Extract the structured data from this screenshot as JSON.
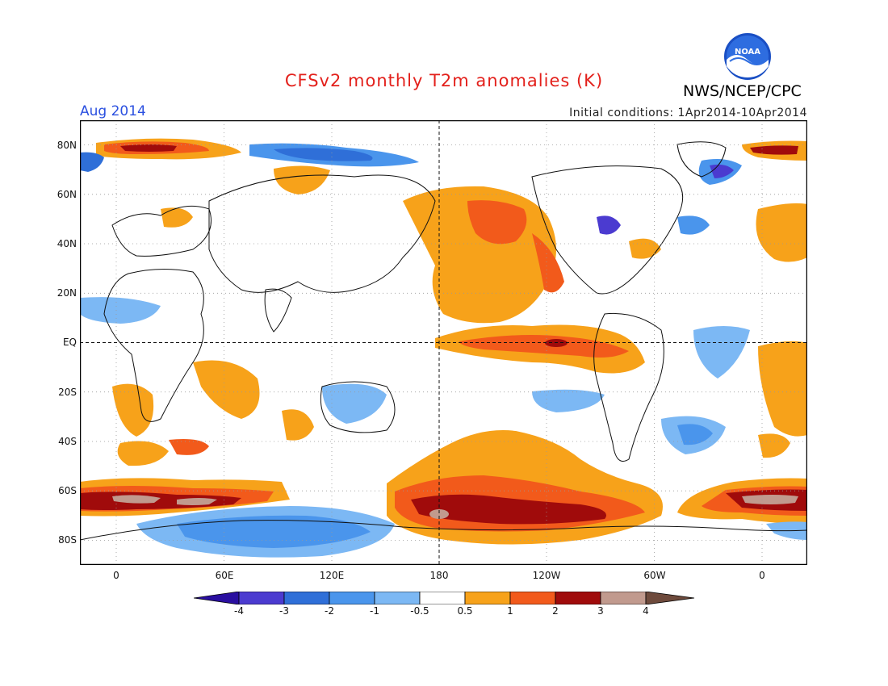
{
  "header": {
    "title": "CFSv2 monthly T2m anomalies (K)",
    "month": "Aug 2014",
    "initial_conditions": "Initial conditions: 1Apr2014-10Apr2014",
    "organization": "NWS/NCEP/CPC",
    "logo_text": "NOAA"
  },
  "axes": {
    "lat_labels": [
      "80N",
      "60N",
      "40N",
      "20N",
      "EQ",
      "20S",
      "40S",
      "60S",
      "80S"
    ],
    "lon_labels": [
      "0",
      "60E",
      "120E",
      "180",
      "120W",
      "60W",
      "0"
    ]
  },
  "colorbar": {
    "labels": [
      "-4",
      "-3",
      "-2",
      "-1",
      "-0.5",
      "0.5",
      "1",
      "2",
      "3",
      "4"
    ],
    "colors": [
      "#2a0fa0",
      "#4b3bd0",
      "#2f6fd8",
      "#4a95ec",
      "#7cb8f4",
      "#ffffff",
      "#f7a21a",
      "#f25a1b",
      "#a00b0b",
      "#c19a8e",
      "#6e4a3c"
    ]
  },
  "map": {
    "ocean_color": "#ffffff",
    "grid": "dotted",
    "reference_lines": [
      "EQ",
      "180"
    ]
  }
}
